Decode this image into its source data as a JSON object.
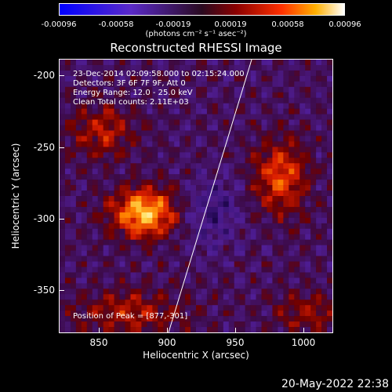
{
  "colorbar": {
    "ticks": [
      "-0.00096",
      "-0.00058",
      "-0.00019",
      "0.00019",
      "0.00058",
      "0.00096"
    ],
    "units_label": "(photons cm⁻² s⁻¹ asec⁻²)"
  },
  "plot": {
    "title": "Reconstructed RHESSI Image",
    "x_axis_label": "Heliocentric X (arcsec)",
    "y_axis_label": "Heliocentric Y (arcsec)",
    "x_ticks": [
      "850",
      "900",
      "950",
      "1000"
    ],
    "y_ticks": [
      "-200",
      "-250",
      "-300",
      "-350"
    ],
    "info_lines": [
      "23-Dec-2014 02:09:58.000 to 02:15:24.000",
      "Detectors: 3F 6F 7F 9F, Att 0",
      "Energy Range: 12.0 - 25.0 keV",
      "Clean     Total counts: 2.11E+03"
    ],
    "peak_label": "Position of Peak = [877,-301]"
  },
  "footer": {
    "date": "20-May-2022 22:38"
  }
}
